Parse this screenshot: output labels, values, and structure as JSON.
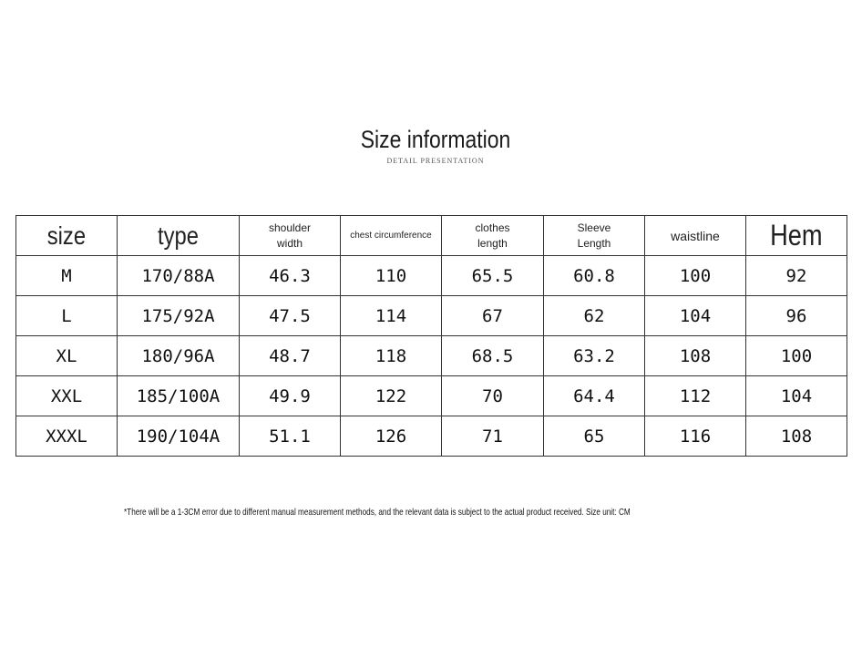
{
  "title": "Size information",
  "subtitle": "DETAIL PRESENTATION",
  "table": {
    "headers": [
      "size",
      "type",
      "shoulder width",
      "chest circumference",
      "clothes length",
      "Sleeve Length",
      "waistline",
      "Hem"
    ],
    "rows": [
      [
        "M",
        "170/88A",
        "46.3",
        "110",
        "65.5",
        "60.8",
        "100",
        "92"
      ],
      [
        "L",
        "175/92A",
        "47.5",
        "114",
        "67",
        "62",
        "104",
        "96"
      ],
      [
        "XL",
        "180/96A",
        "48.7",
        "118",
        "68.5",
        "63.2",
        "108",
        "100"
      ],
      [
        "XXL",
        "185/100A",
        "49.9",
        "122",
        "70",
        "64.4",
        "112",
        "104"
      ],
      [
        "XXXL",
        "190/104A",
        "51.1",
        "126",
        "71",
        "65",
        "116",
        "108"
      ]
    ]
  },
  "note": "*There will be a 1-3CM error due to different manual measurement methods, and the relevant data is subject to the actual product received. Size unit: CM"
}
